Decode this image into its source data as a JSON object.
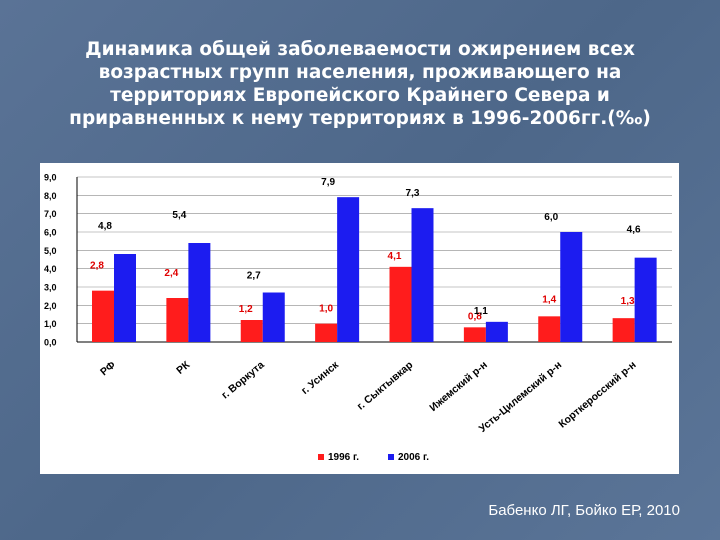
{
  "slide": {
    "title": "Динамика общей заболеваемости ожирением всех возрастных групп населения, проживающего на территориях Европейского Крайнего Севера и приравненных к нему территориях в 1996-2006гг.(‰)",
    "credit": "Бабенко ЛГ, Бойко ЕР, 2010"
  },
  "chart_data": {
    "type": "bar",
    "title": "",
    "xlabel": "",
    "ylabel": "",
    "ylim": [
      0,
      9
    ],
    "y_ticks": [
      "0,0",
      "1,0",
      "2,0",
      "3,0",
      "4,0",
      "5,0",
      "6,0",
      "7,0",
      "8,0",
      "9,0"
    ],
    "grid": true,
    "legend_position": "bottom",
    "categories": [
      "РФ",
      "РК",
      "г. Воркута",
      "г. Усинск",
      "г. Сыктывкар",
      "Ижемский р-н",
      "Усть-Цилемский р-н",
      "Корткеросский р-н"
    ],
    "series": [
      {
        "name": "1996 г.",
        "color": "#ff1c1c",
        "values": [
          2.8,
          2.4,
          1.2,
          1.0,
          4.1,
          0.8,
          1.4,
          1.3
        ],
        "labels": [
          "2,8",
          "2,4",
          "1,2",
          "1,0",
          "4,1",
          "0,8",
          "1,4",
          "1,3"
        ]
      },
      {
        "name": "2006 г.",
        "color": "#1c1cf0",
        "values": [
          4.8,
          5.4,
          2.7,
          7.9,
          7.3,
          1.1,
          6.0,
          4.6
        ],
        "labels": [
          "4,8",
          "5,4",
          "2,7",
          "7,9",
          "7,3",
          "1,1",
          "6,0",
          "4,6"
        ]
      }
    ]
  }
}
